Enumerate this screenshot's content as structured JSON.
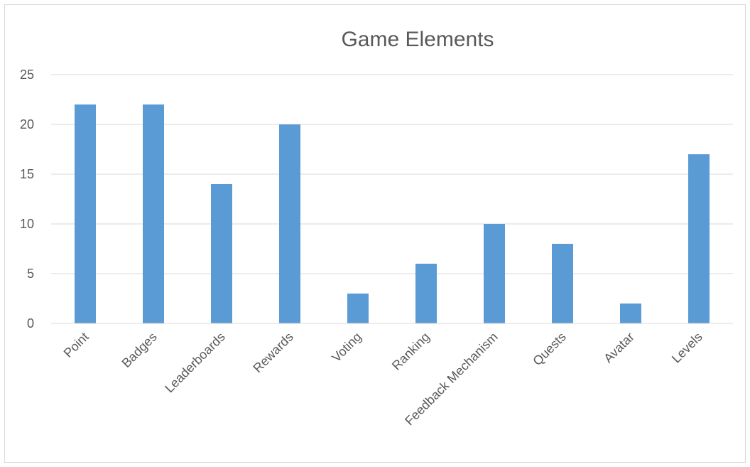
{
  "chart_data": {
    "type": "bar",
    "title": "Game Elements",
    "xlabel": "",
    "ylabel": "",
    "categories": [
      "Point",
      "Badges",
      "Leaderboards",
      "Rewards",
      "Voting",
      "Ranking",
      "Feedback Mechanism",
      "Quests",
      "Avatar",
      "Levels"
    ],
    "values": [
      22,
      22,
      14,
      20,
      3,
      6,
      10,
      8,
      2,
      17
    ],
    "ylim": [
      0,
      25
    ],
    "yticks": [
      "0",
      "5",
      "10",
      "15",
      "20",
      "25"
    ],
    "grid": true,
    "legend": "none",
    "bar_color": "#5b9bd5"
  }
}
